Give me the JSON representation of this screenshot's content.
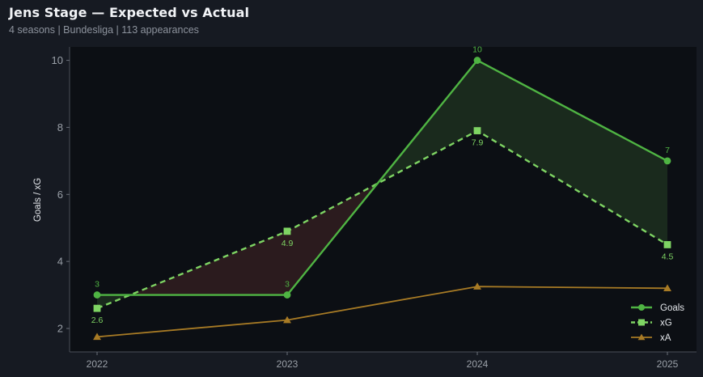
{
  "header": {
    "title": "Jens Stage — Expected vs Actual",
    "subtitle": "4 seasons | Bundesliga | 113 appearances"
  },
  "colors": {
    "background": "#161a22",
    "plot_background": "#0c0f14",
    "goals": "#4fb443",
    "xg": "#7ed463",
    "xa": "#a87b25",
    "over_fill": "#1b2c1e",
    "under_fill": "#2d1c1f"
  },
  "chart_data": {
    "type": "line",
    "title": "Jens Stage — Expected vs Actual",
    "subtitle": "4 seasons | Bundesliga | 113 appearances",
    "xlabel": "",
    "ylabel": "Goals / xG",
    "categories": [
      "2022",
      "2023",
      "2024",
      "2025"
    ],
    "ylim": [
      1.3,
      10.4
    ],
    "yticks": [
      2,
      4,
      6,
      8,
      10
    ],
    "grid": false,
    "legend_position": "bottom-right",
    "series": [
      {
        "name": "Goals",
        "values": [
          3,
          3,
          10,
          7
        ],
        "labels": [
          "3",
          "3",
          "10",
          "7"
        ],
        "marker": "circle",
        "style": "solid"
      },
      {
        "name": "xG",
        "values": [
          2.6,
          4.9,
          7.9,
          4.5
        ],
        "labels": [
          "2.6",
          "4.9",
          "7.9",
          "4.5"
        ],
        "marker": "square",
        "style": "dashed"
      },
      {
        "name": "xA",
        "values": [
          1.75,
          2.25,
          3.25,
          3.2
        ],
        "marker": "triangle",
        "style": "solid"
      }
    ]
  }
}
